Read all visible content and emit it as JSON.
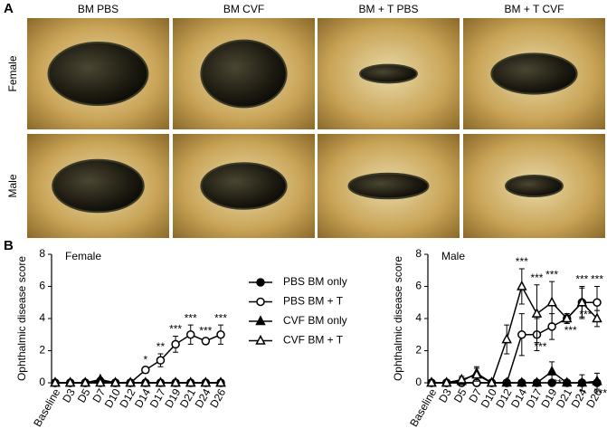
{
  "panel_a": {
    "label": "A",
    "columns": [
      "BM PBS",
      "BM CVF",
      "BM +  T PBS",
      "BM + T CVF"
    ],
    "rows": [
      "Female",
      "Male"
    ]
  },
  "panel_b": {
    "label": "B"
  },
  "chart_data": [
    {
      "type": "line",
      "title": "Female",
      "ylabel": "Ophthalmic disease score",
      "categories": [
        "Baseline",
        "D3",
        "D5",
        "D7",
        "D10",
        "D12",
        "D14",
        "D17",
        "D19",
        "D21",
        "D24",
        "D26"
      ],
      "ylim": [
        0,
        8
      ],
      "yticks": [
        0,
        2,
        4,
        6,
        8
      ],
      "series": [
        {
          "name": "PBS BM only",
          "color": "#000000",
          "marker": "circle",
          "filled": true,
          "values": [
            0,
            0,
            0,
            0,
            0,
            0,
            0,
            0,
            0,
            0,
            0,
            0
          ],
          "errors": [
            0,
            0,
            0,
            0,
            0,
            0,
            0,
            0,
            0,
            0,
            0,
            0
          ]
        },
        {
          "name": "PBS BM + T",
          "color": "#000000",
          "marker": "circle",
          "filled": false,
          "values": [
            0,
            0,
            0,
            0.1,
            0,
            0,
            0.8,
            1.4,
            2.4,
            3,
            2.6,
            3
          ],
          "errors": [
            0,
            0,
            0,
            0.1,
            0,
            0,
            0.2,
            0.4,
            0.5,
            0.6,
            0.2,
            0.6
          ]
        },
        {
          "name": "CVF BM only",
          "color": "#000000",
          "marker": "triangle",
          "filled": true,
          "values": [
            0,
            0,
            0,
            0.2,
            0,
            0,
            0,
            0,
            0,
            0,
            0,
            0
          ],
          "errors": [
            0,
            0,
            0,
            0.1,
            0,
            0,
            0,
            0,
            0,
            0,
            0,
            0
          ]
        },
        {
          "name": "CVF BM + T",
          "color": "#000000",
          "marker": "triangle",
          "filled": false,
          "values": [
            0,
            0,
            0,
            0,
            0,
            0,
            0,
            0,
            0,
            0,
            0,
            0
          ],
          "errors": [
            0,
            0,
            0,
            0,
            0,
            0,
            0,
            0,
            0,
            0,
            0,
            0
          ]
        }
      ],
      "annotations_upper": [
        null,
        null,
        null,
        null,
        null,
        null,
        "*",
        "**",
        "***",
        "***",
        "***",
        "***"
      ]
    },
    {
      "type": "line",
      "title": "Male",
      "ylabel": "Ophthalmic disease score",
      "categories": [
        "Baseline",
        "D3",
        "D5",
        "D7",
        "D10",
        "D12",
        "D14",
        "D17",
        "D19",
        "D21",
        "D24",
        "D26"
      ],
      "ylim": [
        0,
        8
      ],
      "yticks": [
        0,
        2,
        4,
        6,
        8
      ],
      "series": [
        {
          "name": "PBS BM only",
          "color": "#000000",
          "marker": "circle",
          "filled": true,
          "values": [
            0,
            0,
            0,
            0,
            0,
            0,
            0,
            0,
            0,
            0,
            0,
            0
          ],
          "errors": [
            0,
            0,
            0,
            0,
            0,
            0,
            0,
            0,
            0,
            0,
            0,
            0
          ]
        },
        {
          "name": "PBS BM + T",
          "color": "#000000",
          "marker": "circle",
          "filled": false,
          "values": [
            0,
            0,
            0,
            0,
            0,
            0,
            3,
            3,
            3.5,
            4,
            5,
            5
          ],
          "errors": [
            0,
            0,
            0,
            0,
            0,
            0,
            1.3,
            1,
            0.8,
            0.3,
            1,
            1
          ]
        },
        {
          "name": "CVF BM only",
          "color": "#000000",
          "marker": "triangle",
          "filled": true,
          "values": [
            0,
            0,
            0.1,
            0.6,
            0,
            0,
            0,
            0,
            0.7,
            0,
            0,
            0.1
          ],
          "errors": [
            0,
            0,
            0.2,
            0.4,
            0,
            0,
            0,
            0,
            0.6,
            0,
            0.5,
            0.5
          ]
        },
        {
          "name": "CVF BM + T",
          "color": "#000000",
          "marker": "triangle",
          "filled": false,
          "values": [
            0,
            0,
            0.2,
            0.5,
            0,
            2.7,
            6,
            4.3,
            5,
            4,
            5,
            4
          ],
          "errors": [
            0,
            0,
            0.2,
            0.4,
            0,
            0.9,
            1.1,
            1.8,
            1.3,
            0.3,
            0.9,
            0.5
          ]
        }
      ],
      "annotations_upper": [
        null,
        null,
        null,
        null,
        null,
        null,
        "***",
        "***",
        "***",
        null,
        "***",
        "***"
      ],
      "annotations_lower": [
        null,
        null,
        null,
        null,
        null,
        null,
        null,
        "***",
        "***",
        "***",
        "***",
        "***"
      ]
    }
  ]
}
